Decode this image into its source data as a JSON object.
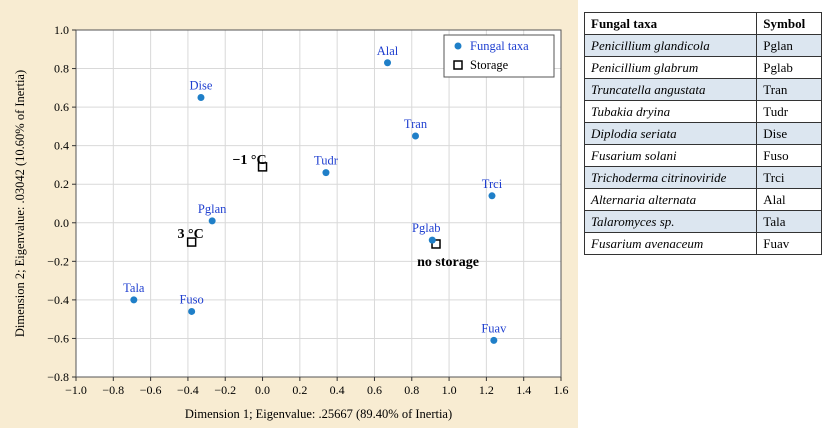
{
  "chart_data": {
    "type": "scatter",
    "xlabel": "Dimension 1; Eigenvalue: .25667 (89.40% of Inertia)",
    "ylabel": "Dimension 2; Eigenvalue: .03042 (10.60% of Inertia)",
    "xlim": [
      -1.0,
      1.6
    ],
    "ylim": [
      -0.8,
      1.0
    ],
    "xticks": [
      "−1.0",
      "−0.8",
      "−0.6",
      "−0.4",
      "−0.2",
      "0.0",
      "0.2",
      "0.4",
      "0.6",
      "0.8",
      "1.0",
      "1.2",
      "1.4",
      "1.6"
    ],
    "yticks": [
      "1.0",
      "0.8",
      "0.6",
      "0.4",
      "0.2",
      "0.0",
      "−0.2",
      "−0.4",
      "−0.6",
      "−0.8"
    ],
    "grid": true,
    "legend_position": "top-right",
    "series": [
      {
        "name": "Fungal taxa",
        "marker": "circle",
        "color": "#1f7fc8",
        "label_color": "#1f3fd0",
        "points": [
          {
            "label": "Alal",
            "x": 0.67,
            "y": 0.83
          },
          {
            "label": "Dise",
            "x": -0.33,
            "y": 0.65
          },
          {
            "label": "Tran",
            "x": 0.82,
            "y": 0.45
          },
          {
            "label": "Tudr",
            "x": 0.34,
            "y": 0.26
          },
          {
            "label": "Trci",
            "x": 1.23,
            "y": 0.14
          },
          {
            "label": "Pglan",
            "x": -0.27,
            "y": 0.01
          },
          {
            "label": "Pglab",
            "x": 0.91,
            "y": -0.09
          },
          {
            "label": "Tala",
            "x": -0.69,
            "y": -0.4
          },
          {
            "label": "Fuso",
            "x": -0.38,
            "y": -0.46
          },
          {
            "label": "Fuav",
            "x": 1.24,
            "y": -0.61
          }
        ]
      },
      {
        "name": "Storage",
        "marker": "square",
        "color": "#000000",
        "label_color": "#000000",
        "points": [
          {
            "label": "−1 °C",
            "x": 0.0,
            "y": 0.29
          },
          {
            "label": "3 °C",
            "x": -0.38,
            "y": -0.1
          },
          {
            "label": "no storage",
            "x": 0.93,
            "y": -0.11
          }
        ]
      }
    ]
  },
  "table": {
    "headers": [
      "Fungal taxa",
      "Symbol"
    ],
    "rows": [
      {
        "taxon": "Penicillium glandicola",
        "symbol": "Pglan"
      },
      {
        "taxon": "Penicillium glabrum",
        "symbol": "Pglab"
      },
      {
        "taxon": "Truncatella angustata",
        "symbol": "Tran"
      },
      {
        "taxon": "Tubakia dryina",
        "symbol": "Tudr"
      },
      {
        "taxon": "Diplodia seriata",
        "symbol": "Dise"
      },
      {
        "taxon": "Fusarium solani",
        "symbol": "Fuso"
      },
      {
        "taxon": "Trichoderma citrinoviride",
        "symbol": "Trci"
      },
      {
        "taxon": "Alternaria alternata",
        "symbol": "Alal"
      },
      {
        "taxon": "Talaromyces  sp.",
        "symbol": "Tala"
      },
      {
        "taxon": "Fusarium avenaceum",
        "symbol": "Fuav"
      }
    ]
  }
}
